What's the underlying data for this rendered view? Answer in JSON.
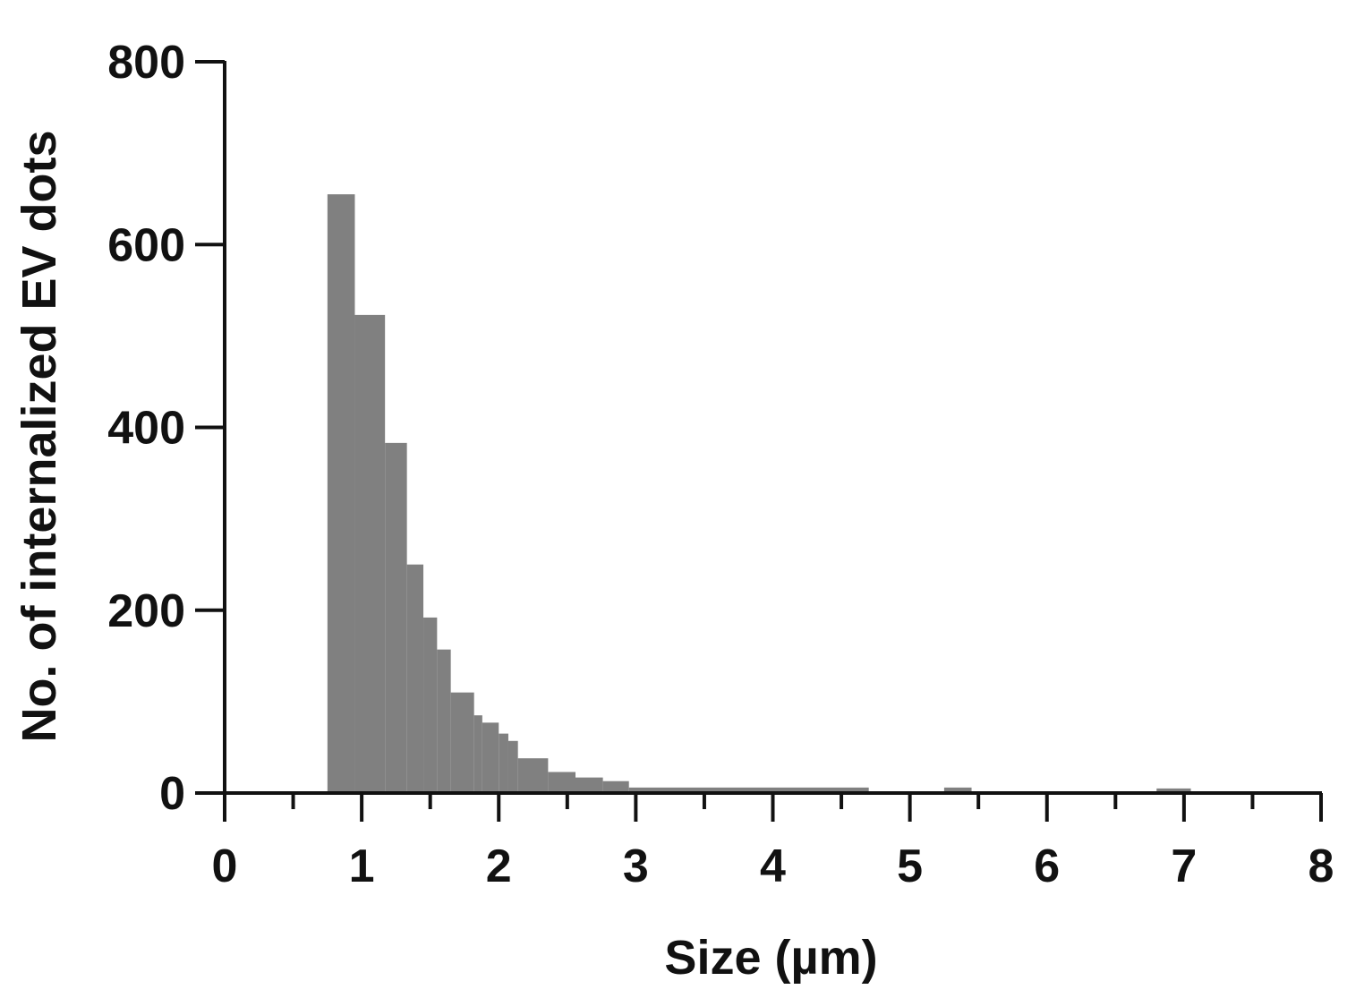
{
  "chart_data": {
    "type": "bar",
    "subtype": "histogram",
    "title": "",
    "xlabel": "Size (µm)",
    "ylabel": "No. of internalized EV dots",
    "xlim": [
      0,
      8
    ],
    "ylim": [
      0,
      800
    ],
    "x_ticks": [
      "0",
      "1",
      "2",
      "3",
      "4",
      "5",
      "6",
      "7",
      "8"
    ],
    "y_ticks": [
      "0",
      "200",
      "400",
      "600",
      "800"
    ],
    "bar_color": "#808080",
    "grid": false,
    "legend": "none",
    "bins": [
      {
        "x0": 0.75,
        "x1": 0.95,
        "count": 655
      },
      {
        "x0": 0.95,
        "x1": 1.17,
        "count": 523
      },
      {
        "x0": 1.17,
        "x1": 1.33,
        "count": 383
      },
      {
        "x0": 1.33,
        "x1": 1.45,
        "count": 250
      },
      {
        "x0": 1.45,
        "x1": 1.55,
        "count": 192
      },
      {
        "x0": 1.55,
        "x1": 1.65,
        "count": 157
      },
      {
        "x0": 1.65,
        "x1": 1.82,
        "count": 110
      },
      {
        "x0": 1.82,
        "x1": 1.88,
        "count": 85
      },
      {
        "x0": 1.88,
        "x1": 2.0,
        "count": 77
      },
      {
        "x0": 2.0,
        "x1": 2.07,
        "count": 65
      },
      {
        "x0": 2.07,
        "x1": 2.14,
        "count": 57
      },
      {
        "x0": 2.14,
        "x1": 2.36,
        "count": 38
      },
      {
        "x0": 2.36,
        "x1": 2.56,
        "count": 23
      },
      {
        "x0": 2.56,
        "x1": 2.76,
        "count": 17
      },
      {
        "x0": 2.76,
        "x1": 2.95,
        "count": 13
      },
      {
        "x0": 2.95,
        "x1": 4.7,
        "count": 6
      },
      {
        "x0": 5.25,
        "x1": 5.45,
        "count": 6
      },
      {
        "x0": 6.8,
        "x1": 7.05,
        "count": 5
      }
    ]
  }
}
